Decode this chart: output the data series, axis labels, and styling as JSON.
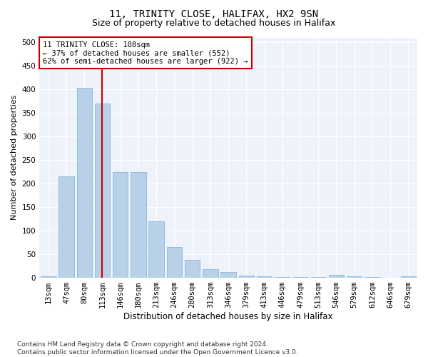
{
  "title1": "11, TRINITY CLOSE, HALIFAX, HX2 9SN",
  "title2": "Size of property relative to detached houses in Halifax",
  "xlabel": "Distribution of detached houses by size in Halifax",
  "ylabel": "Number of detached properties",
  "categories": [
    "13sqm",
    "47sqm",
    "80sqm",
    "113sqm",
    "146sqm",
    "180sqm",
    "213sqm",
    "246sqm",
    "280sqm",
    "313sqm",
    "346sqm",
    "379sqm",
    "413sqm",
    "446sqm",
    "479sqm",
    "513sqm",
    "546sqm",
    "579sqm",
    "612sqm",
    "646sqm",
    "679sqm"
  ],
  "values": [
    3,
    215,
    403,
    370,
    225,
    225,
    120,
    65,
    38,
    18,
    12,
    5,
    3,
    2,
    2,
    2,
    6,
    3,
    1,
    0,
    3
  ],
  "bar_color": "#b8d0e8",
  "bar_edge_color": "#7aafd4",
  "vline_x_idx": 3,
  "vline_color": "#cc0000",
  "annotation_text": "11 TRINITY CLOSE: 108sqm\n← 37% of detached houses are smaller (552)\n62% of semi-detached houses are larger (922) →",
  "annotation_box_color": "#ffffff",
  "annotation_box_edge_color": "#cc0000",
  "footer": "Contains HM Land Registry data © Crown copyright and database right 2024.\nContains public sector information licensed under the Open Government Licence v3.0.",
  "ylim": [
    0,
    510
  ],
  "plot_bg_color": "#eef2fb",
  "title1_fontsize": 10,
  "title2_fontsize": 9,
  "xlabel_fontsize": 8.5,
  "ylabel_fontsize": 8,
  "tick_fontsize": 7.5,
  "ann_fontsize": 7.5,
  "footer_fontsize": 6.5
}
